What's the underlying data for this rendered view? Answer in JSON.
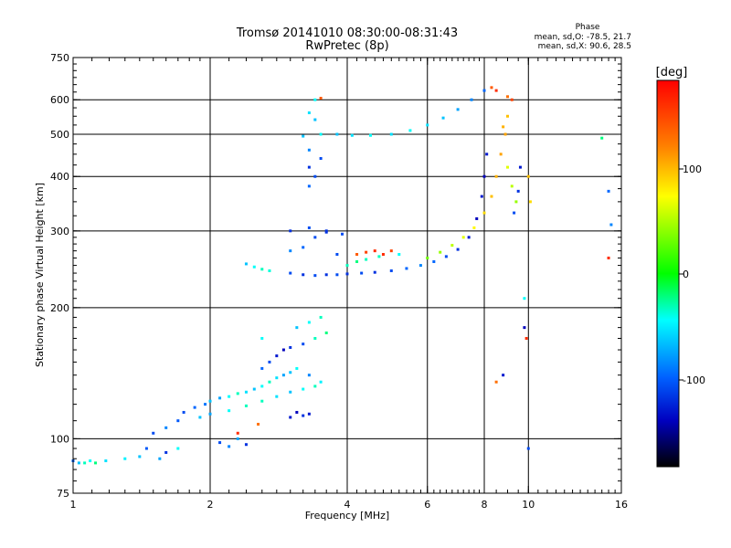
{
  "header": {
    "title": "Tromsø 20141010 08:30:00-08:31:43",
    "subtitle": "RwPretec (8p)",
    "phase_heading": "Phase",
    "phase_stats_o": "mean, sd,O:  -78.5, 21.7",
    "phase_stats_x": "mean, sd,X:   90.6, 28.5"
  },
  "colorbar": {
    "unit_label": "[deg]",
    "ticks": [
      "100",
      "0",
      "-100"
    ],
    "colors": [
      "#ff0000",
      "#ff8000",
      "#ffff00",
      "#00ff00",
      "#00ffff",
      "#0060ff",
      "#0000c0",
      "#000000"
    ]
  },
  "chart_data": {
    "type": "scatter",
    "title": "Tromsø 20141010 08:30:00-08:31:43",
    "subtitle": "RwPretec (8p)",
    "xlabel": "Frequency [MHz]",
    "ylabel": "Stationary phase Virtual Height [km]",
    "x_scale": "log",
    "y_scale": "log",
    "xlim": [
      1,
      16
    ],
    "ylim": [
      75,
      750
    ],
    "xticks": [
      1,
      2,
      4,
      6,
      8,
      10,
      16
    ],
    "xtick_labels": [
      "1",
      "2",
      "4",
      "6",
      "8",
      "10",
      "16"
    ],
    "yticks": [
      75,
      100,
      200,
      300,
      400,
      500,
      600,
      750
    ],
    "ytick_labels": [
      "75",
      "100",
      "200",
      "300",
      "400",
      "500",
      "600",
      "750"
    ],
    "grid": true,
    "color_scale": {
      "label": "[deg]",
      "range": [
        -170,
        170
      ]
    },
    "series": [
      {
        "trace": "low-band-points",
        "points": [
          [
            1.0,
            89,
            -90
          ],
          [
            1.03,
            88,
            -60
          ],
          [
            1.06,
            88,
            -30
          ],
          [
            1.09,
            89,
            -40
          ],
          [
            1.12,
            88,
            -20
          ],
          [
            1.18,
            89,
            -50
          ],
          [
            1.3,
            90,
            -45
          ],
          [
            1.4,
            91,
            -60
          ],
          [
            1.45,
            95,
            -95
          ],
          [
            1.55,
            90,
            -70
          ],
          [
            1.6,
            93,
            -110
          ],
          [
            1.7,
            95,
            -40
          ],
          [
            1.5,
            103,
            -100
          ],
          [
            1.6,
            106,
            -80
          ],
          [
            1.7,
            110,
            -95
          ],
          [
            1.75,
            115,
            -100
          ],
          [
            1.85,
            118,
            -90
          ],
          [
            1.95,
            120,
            -85
          ],
          [
            2.0,
            122,
            -60
          ],
          [
            2.1,
            124,
            -70
          ],
          [
            2.2,
            125,
            -40
          ],
          [
            2.3,
            127,
            -30
          ],
          [
            2.4,
            128,
            -50
          ],
          [
            2.5,
            130,
            -60
          ],
          [
            2.6,
            132,
            -40
          ],
          [
            2.7,
            135,
            -30
          ],
          [
            2.8,
            138,
            -50
          ],
          [
            2.9,
            140,
            -70
          ],
          [
            3.0,
            142,
            -60
          ],
          [
            3.1,
            145,
            -40
          ],
          [
            1.9,
            112,
            -60
          ],
          [
            2.0,
            114,
            -70
          ],
          [
            2.2,
            116,
            -40
          ],
          [
            2.4,
            119,
            -30
          ],
          [
            2.6,
            122,
            -30
          ],
          [
            2.8,
            125,
            -50
          ],
          [
            3.0,
            128,
            -60
          ],
          [
            3.2,
            130,
            -40
          ],
          [
            3.4,
            132,
            -30
          ],
          [
            3.3,
            140,
            -80
          ],
          [
            3.5,
            135,
            -45
          ],
          [
            2.1,
            98,
            -100
          ],
          [
            2.2,
            96,
            -80
          ],
          [
            2.3,
            100,
            -70
          ],
          [
            2.4,
            97,
            -110
          ],
          [
            2.6,
            145,
            -90
          ],
          [
            2.7,
            150,
            -100
          ],
          [
            2.8,
            155,
            -120
          ],
          [
            2.9,
            160,
            -130
          ],
          [
            3.0,
            162,
            -110
          ],
          [
            3.2,
            165,
            -100
          ],
          [
            3.0,
            112,
            -120
          ],
          [
            3.1,
            115,
            -130
          ],
          [
            3.2,
            113,
            -110
          ],
          [
            3.3,
            114,
            -120
          ],
          [
            3.1,
            180,
            -60
          ],
          [
            3.3,
            185,
            -40
          ],
          [
            3.5,
            190,
            -30
          ],
          [
            3.6,
            175,
            -20
          ],
          [
            3.4,
            170,
            -30
          ],
          [
            2.6,
            170,
            -40
          ],
          [
            2.55,
            108,
            120
          ],
          [
            2.3,
            103,
            150
          ]
        ]
      },
      {
        "trace": "f-region-o-trace",
        "points": [
          [
            2.4,
            252,
            -60
          ],
          [
            2.5,
            248,
            -40
          ],
          [
            2.6,
            245,
            -30
          ],
          [
            2.7,
            243,
            -35
          ],
          [
            3.0,
            240,
            -100
          ],
          [
            3.2,
            238,
            -110
          ],
          [
            3.4,
            237,
            -100
          ],
          [
            3.6,
            238,
            -110
          ],
          [
            3.8,
            238,
            -100
          ],
          [
            4.0,
            239,
            -110
          ],
          [
            4.3,
            240,
            -100
          ],
          [
            4.6,
            241,
            -110
          ],
          [
            5.0,
            243,
            -100
          ],
          [
            5.4,
            246,
            -90
          ],
          [
            5.8,
            250,
            -80
          ],
          [
            6.2,
            255,
            -90
          ],
          [
            6.6,
            262,
            -100
          ],
          [
            7.0,
            272,
            -110
          ],
          [
            7.4,
            290,
            -120
          ],
          [
            7.7,
            320,
            -130
          ],
          [
            7.9,
            360,
            -120
          ],
          [
            8.0,
            400,
            -130
          ],
          [
            8.1,
            450,
            -120
          ],
          [
            3.0,
            270,
            -80
          ],
          [
            3.2,
            275,
            -90
          ],
          [
            3.4,
            290,
            -100
          ],
          [
            3.6,
            298,
            -110
          ],
          [
            3.8,
            265,
            -100
          ],
          [
            4.2,
            265,
            130
          ],
          [
            4.4,
            268,
            140
          ],
          [
            4.6,
            270,
            150
          ],
          [
            4.8,
            265,
            150
          ],
          [
            5.0,
            270,
            140
          ],
          [
            4.0,
            250,
            -30
          ],
          [
            4.2,
            255,
            -20
          ],
          [
            4.4,
            258,
            -30
          ],
          [
            4.7,
            262,
            -30
          ],
          [
            5.2,
            265,
            -40
          ],
          [
            3.0,
            300,
            -110
          ],
          [
            3.3,
            305,
            -100
          ],
          [
            3.6,
            300,
            -110
          ],
          [
            3.9,
            295,
            -100
          ]
        ]
      },
      {
        "trace": "f-region-x-trace",
        "points": [
          [
            6.0,
            260,
            30
          ],
          [
            6.4,
            268,
            40
          ],
          [
            6.8,
            278,
            50
          ],
          [
            7.2,
            290,
            60
          ],
          [
            7.6,
            305,
            70
          ],
          [
            8.0,
            330,
            80
          ],
          [
            8.3,
            360,
            90
          ],
          [
            8.5,
            400,
            95
          ],
          [
            8.7,
            450,
            100
          ],
          [
            8.9,
            500,
            100
          ],
          [
            9.0,
            550,
            90
          ],
          [
            8.8,
            520,
            95
          ],
          [
            9.0,
            420,
            60
          ],
          [
            9.2,
            380,
            50
          ],
          [
            9.4,
            350,
            40
          ],
          [
            9.3,
            330,
            -100
          ],
          [
            9.5,
            370,
            -110
          ],
          [
            9.6,
            420,
            -120
          ]
        ]
      },
      {
        "trace": "upper-echoes",
        "points": [
          [
            3.2,
            495,
            -60
          ],
          [
            3.5,
            500,
            -40
          ],
          [
            3.8,
            500,
            -60
          ],
          [
            4.1,
            497,
            -50
          ],
          [
            4.5,
            497,
            -40
          ],
          [
            5.0,
            500,
            -50
          ],
          [
            5.5,
            510,
            -40
          ],
          [
            6.0,
            525,
            -50
          ],
          [
            6.5,
            545,
            -60
          ],
          [
            7.0,
            570,
            -70
          ],
          [
            7.5,
            600,
            -80
          ],
          [
            8.0,
            630,
            -90
          ],
          [
            8.3,
            640,
            130
          ],
          [
            8.5,
            630,
            150
          ],
          [
            9.0,
            610,
            120
          ],
          [
            9.2,
            600,
            140
          ],
          [
            3.3,
            380,
            -90
          ],
          [
            3.4,
            400,
            -100
          ],
          [
            3.3,
            420,
            -110
          ],
          [
            3.5,
            440,
            -100
          ],
          [
            3.3,
            460,
            -80
          ],
          [
            3.4,
            600,
            -40
          ],
          [
            3.5,
            605,
            130
          ],
          [
            3.3,
            560,
            -50
          ],
          [
            3.4,
            540,
            -60
          ],
          [
            14.5,
            490,
            -20
          ],
          [
            15.0,
            370,
            -90
          ],
          [
            15.2,
            310,
            -80
          ],
          [
            15.0,
            260,
            150
          ],
          [
            10.0,
            400,
            90
          ],
          [
            10.1,
            350,
            80
          ],
          [
            9.8,
            180,
            -130
          ],
          [
            9.9,
            170,
            150
          ],
          [
            10.0,
            95,
            -100
          ],
          [
            8.5,
            135,
            120
          ],
          [
            8.8,
            140,
            -120
          ],
          [
            9.8,
            210,
            -40
          ]
        ]
      }
    ]
  }
}
